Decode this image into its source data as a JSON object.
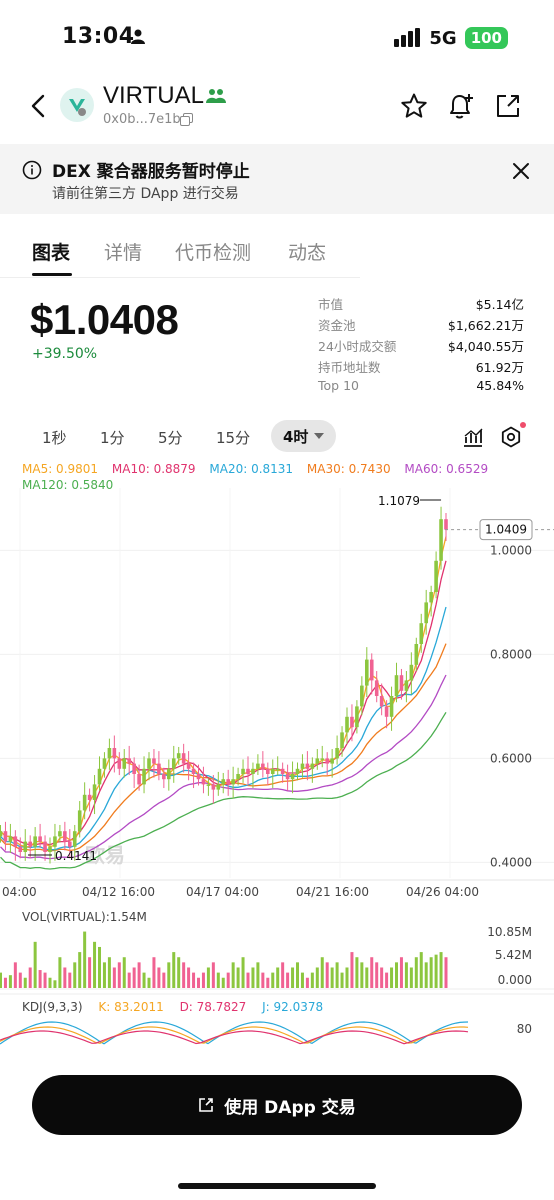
{
  "status": {
    "time": "13:04",
    "network": "5G",
    "battery": "100"
  },
  "header": {
    "token_name": "VIRTUAL",
    "token_address": "0x0b...7e1b"
  },
  "notice": {
    "title": "DEX 聚合器服务暂时停止",
    "subtitle": "请前往第三方 DApp 进行交易"
  },
  "tabs": [
    {
      "label": "图表",
      "active": true
    },
    {
      "label": "详情",
      "active": false
    },
    {
      "label": "代币检测",
      "active": false
    },
    {
      "label": "动态",
      "active": false
    }
  ],
  "price": {
    "value": "$1.0408",
    "change": "+39.50%"
  },
  "stats": [
    {
      "label": "市值",
      "value": "$5.14亿"
    },
    {
      "label": "资金池",
      "value": "$1,662.21万"
    },
    {
      "label": "24小时成交额",
      "value": "$4,040.55万"
    },
    {
      "label": "持币地址数",
      "value": "61.92万"
    },
    {
      "label": "Top 10",
      "value": "45.84%"
    }
  ],
  "intervals": [
    {
      "label": "1秒",
      "active": false
    },
    {
      "label": "1分",
      "active": false
    },
    {
      "label": "5分",
      "active": false
    },
    {
      "label": "15分",
      "active": false
    },
    {
      "label": "4时",
      "active": true
    }
  ],
  "ma": [
    {
      "label": "MA5: 0.9801",
      "color": "#f5a623"
    },
    {
      "label": "MA10: 0.8879",
      "color": "#e0336e"
    },
    {
      "label": "MA20: 0.8131",
      "color": "#29a8d8"
    },
    {
      "label": "MA30: 0.7430",
      "color": "#f07c1e"
    },
    {
      "label": "MA60: 0.6529",
      "color": "#b34bc4"
    },
    {
      "label": "MA120: 0.5840",
      "color": "#4caf50"
    }
  ],
  "chart_data": {
    "type": "candlestick",
    "y_ticks": [
      "1.0000",
      "0.8000",
      "0.6000",
      "0.4000"
    ],
    "x_ticks": [
      "04:00",
      "04/12 16:00",
      "04/17 04:00",
      "04/21 16:00",
      "04/26 04:00"
    ],
    "high_label": "1.1079",
    "low_label": "0.4141",
    "last_price_label": "1.0409",
    "ylim": [
      0.37,
      1.12
    ],
    "watermark": "欧易",
    "up_color": "#8cc63f",
    "down_color": "#f06292",
    "closes": [
      0.46,
      0.44,
      0.45,
      0.43,
      0.42,
      0.44,
      0.43,
      0.45,
      0.44,
      0.42,
      0.43,
      0.45,
      0.46,
      0.44,
      0.43,
      0.46,
      0.5,
      0.53,
      0.52,
      0.55,
      0.58,
      0.6,
      0.62,
      0.6,
      0.58,
      0.6,
      0.59,
      0.57,
      0.55,
      0.58,
      0.6,
      0.59,
      0.57,
      0.56,
      0.58,
      0.6,
      0.61,
      0.59,
      0.58,
      0.57,
      0.56,
      0.55,
      0.55,
      0.54,
      0.55,
      0.56,
      0.55,
      0.56,
      0.57,
      0.58,
      0.57,
      0.58,
      0.59,
      0.58,
      0.57,
      0.58,
      0.58,
      0.57,
      0.56,
      0.57,
      0.58,
      0.59,
      0.58,
      0.59,
      0.6,
      0.6,
      0.59,
      0.6,
      0.62,
      0.65,
      0.68,
      0.66,
      0.7,
      0.74,
      0.79,
      0.75,
      0.72,
      0.7,
      0.68,
      0.72,
      0.76,
      0.73,
      0.75,
      0.78,
      0.82,
      0.86,
      0.9,
      0.92,
      0.98,
      1.06,
      1.04
    ]
  },
  "volume": {
    "label": "VOL(VIRTUAL):1.54M",
    "ticks": [
      "10.85M",
      "5.42M",
      "0.000"
    ],
    "values": [
      0.3,
      0.2,
      0.25,
      0.5,
      0.3,
      0.2,
      0.4,
      0.9,
      0.35,
      0.3,
      0.2,
      0.15,
      0.6,
      0.4,
      0.3,
      0.5,
      0.7,
      1.1,
      0.6,
      0.9,
      0.8,
      0.5,
      0.6,
      0.4,
      0.5,
      0.6,
      0.3,
      0.4,
      0.5,
      0.3,
      0.2,
      0.6,
      0.4,
      0.3,
      0.5,
      0.7,
      0.6,
      0.5,
      0.4,
      0.3,
      0.2,
      0.3,
      0.4,
      0.5,
      0.3,
      0.2,
      0.3,
      0.5,
      0.4,
      0.6,
      0.3,
      0.4,
      0.5,
      0.3,
      0.2,
      0.3,
      0.4,
      0.5,
      0.3,
      0.4,
      0.5,
      0.3,
      0.2,
      0.3,
      0.4,
      0.6,
      0.5,
      0.4,
      0.5,
      0.3,
      0.4,
      0.7,
      0.6,
      0.5,
      0.4,
      0.6,
      0.5,
      0.4,
      0.3,
      0.4,
      0.5,
      0.6,
      0.5,
      0.4,
      0.6,
      0.7,
      0.5,
      0.6,
      0.65,
      0.7,
      0.6
    ]
  },
  "kdj": {
    "label": "KDJ(9,3,3)",
    "k": "K: 83.2011",
    "d": "D: 78.7827",
    "j": "J: 92.0378",
    "tick": "80"
  },
  "cta": {
    "label": "使用 DApp 交易"
  }
}
